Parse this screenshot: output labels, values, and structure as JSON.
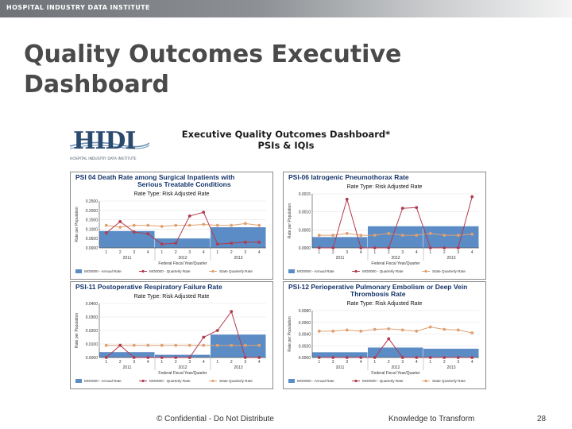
{
  "header": {
    "brand": "HOSPITAL INDUSTRY DATA INSTITUTE"
  },
  "slide": {
    "title": "Quality Outcomes Executive Dashboard"
  },
  "dashboard": {
    "logo_text": "HIDI",
    "logo_subtitle": "HOSPITAL INDUSTRY DATA INSTITUTE",
    "title_line1": "Executive Quality Outcomes Dashboard*",
    "title_line2": "PSIs & IQIs"
  },
  "colors": {
    "bar": "#5b8cc5",
    "series": "#b23a4e",
    "benchmark": "#e0a070",
    "title": "#15346a"
  },
  "legend": {
    "bar": "MO0000 - Annual Rate",
    "line": "MO0000 - Quarterly Rate",
    "benchmark": "State Quarterly Rate"
  },
  "x_axis": {
    "quarters": [
      "1",
      "2",
      "3",
      "4",
      "1",
      "2",
      "3",
      "4",
      "1",
      "2",
      "3",
      "4"
    ],
    "years": [
      "2011",
      "2012",
      "2013"
    ],
    "label": "Federal Fiscal Year/Quarter"
  },
  "charts": [
    {
      "title_lines": [
        "PSI 04 Death Rate among Surgical Inpatients with",
        "Serious Treatable Conditions"
      ],
      "subtitle": "Rate Type: Risk Adjusted Rate",
      "ylabel": "Rate per Population",
      "yticks": [
        "0.2500",
        "0.2000",
        "0.1500",
        "0.1000",
        "0.0500",
        "0.0000"
      ],
      "ymax": 0.25,
      "annual": [
        0.09,
        0.05,
        0.11
      ],
      "quarterly": [
        0.08,
        0.14,
        0.085,
        0.075,
        0.02,
        0.025,
        0.17,
        0.19,
        0.02,
        0.025,
        0.03,
        0.03
      ],
      "state": [
        0.12,
        0.11,
        0.12,
        0.12,
        0.115,
        0.12,
        0.12,
        0.125,
        0.12,
        0.12,
        0.13,
        0.12
      ]
    },
    {
      "title_lines": [
        "PSI-06 Iatrogenic Pneumothorax Rate"
      ],
      "subtitle": "Rate Type: Risk Adjusted Rate",
      "ylabel": "Rate per Population",
      "yticks": [
        "0.0015",
        "0.0010",
        "0.0005",
        "0.0000"
      ],
      "ymax": 0.0015,
      "annual": [
        0.0003,
        0.0006,
        0.0006
      ],
      "quarterly": [
        0.0,
        0.0,
        0.00135,
        0.0,
        0.0,
        0.0,
        0.0011,
        0.00112,
        0.0,
        0.0,
        0.0,
        0.00142
      ],
      "state": [
        0.00035,
        0.00035,
        0.0004,
        0.00035,
        0.00035,
        0.0004,
        0.00035,
        0.00035,
        0.0004,
        0.00035,
        0.00035,
        0.00038
      ]
    },
    {
      "title_lines": [
        "PSI-11 Postoperative Respiratory Failure Rate"
      ],
      "subtitle": "Rate Type: Risk Adjusted Rate",
      "ylabel": "Rate per Population",
      "yticks": [
        "0.0400",
        "0.0300",
        "0.0200",
        "0.0100",
        "0.0000"
      ],
      "ymax": 0.04,
      "annual": [
        0.004,
        0.002,
        0.017
      ],
      "quarterly": [
        0.0,
        0.009,
        0.0,
        0.0,
        0.0,
        0.0,
        0.0,
        0.015,
        0.02,
        0.034,
        0.0,
        0.0
      ],
      "state": [
        0.009,
        0.009,
        0.009,
        0.009,
        0.009,
        0.009,
        0.009,
        0.009,
        0.009,
        0.009,
        0.009,
        0.009
      ]
    },
    {
      "title_lines": [
        "PSI-12 Perioperative Pulmonary Embolism or Deep Vein",
        "Thrombosis Rate"
      ],
      "subtitle": "Rate Type: Risk Adjusted Rate",
      "ylabel": "Rate per Population",
      "yticks": [
        "0.0080",
        "0.0060",
        "0.0040",
        "0.0020",
        "0.0000"
      ],
      "ymax": 0.008,
      "annual": [
        0.0009,
        0.0017,
        0.0015
      ],
      "quarterly": [
        0.0,
        0.0,
        0.0,
        0.0,
        0.0,
        0.0032,
        0.0,
        0.0,
        0.0,
        0.0,
        0.0,
        0.0
      ],
      "state": [
        0.0045,
        0.0045,
        0.0047,
        0.0045,
        0.0048,
        0.0049,
        0.0047,
        0.0045,
        0.0052,
        0.0048,
        0.0047,
        0.0042
      ]
    }
  ],
  "footer": {
    "confidential": "© Confidential - Do Not Distribute",
    "tagline": "Knowledge to Transform",
    "page_number": "28"
  }
}
